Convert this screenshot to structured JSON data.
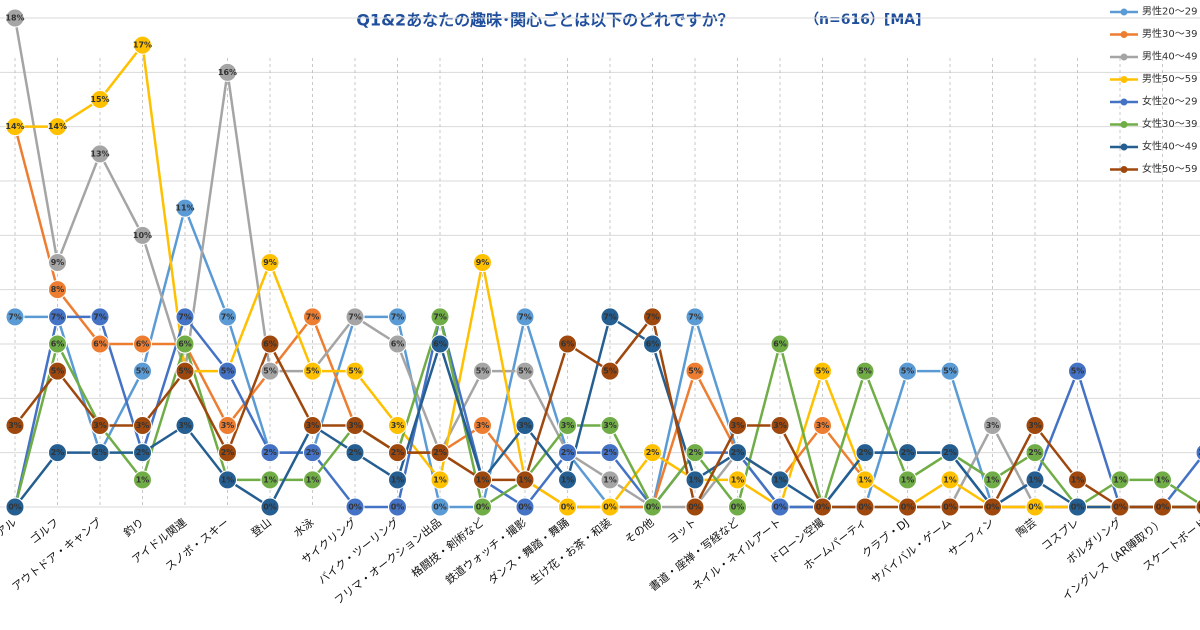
{
  "chart_data": {
    "type": "line",
    "title": "Q1&2あなたの趣味･関心ごとは以下のどれですか？",
    "subtitle": "（n=616）[MA]",
    "categories": [
      "アル",
      "ゴルフ",
      "アウトドア・キャンプ",
      "釣り",
      "アイドル関連",
      "スノボ・スキー",
      "登山",
      "水泳",
      "サイクリング",
      "バイク・ツーリング",
      "フリマ・オークション出品",
      "格闘技・剣術など",
      "鉄道ウォッチ・撮影",
      "ダンス・舞踏・舞踊",
      "生け花・お茶・和装",
      "その他",
      "ヨット",
      "書道・座禅・写経など",
      "ネイル・ネイルアート",
      "ドローン空撮",
      "ホームパーティ",
      "クラブ・DJ",
      "サバイバル・ゲーム",
      "サーフィン",
      "陶芸",
      "コスプレ",
      "ボルダリング",
      "イングレス（AR陣取り）",
      "スケートボード"
    ],
    "ylim": [
      0,
      18
    ],
    "yticks": [
      0,
      2,
      4,
      6,
      8,
      10,
      12,
      14,
      16,
      18
    ],
    "grid": true,
    "series": [
      {
        "name": "男性20～29",
        "color": "#5b9bd5",
        "values": [
          7,
          7,
          2,
          5,
          11,
          7,
          2,
          2,
          7,
          7,
          0,
          0,
          7,
          2,
          0,
          0,
          7,
          2,
          0,
          0,
          0,
          5,
          5,
          0,
          0,
          0,
          0,
          0,
          0
        ],
        "value_labels": [
          "7%",
          "7%",
          "2%",
          "5%",
          "11%",
          "7%",
          "2%",
          "2%",
          "7%",
          "7%",
          "0%",
          "0%",
          "7%",
          "2%",
          "0%",
          "0%",
          "7%",
          "2%",
          "0%",
          "0%",
          "0%",
          "5%",
          "5%",
          "0%",
          "0%",
          "0%",
          "0%",
          "0%",
          "0%"
        ]
      },
      {
        "name": "男性30～39",
        "color": "#ed7d31",
        "values": [
          14,
          8,
          6,
          6,
          6,
          3,
          5,
          7,
          3,
          2,
          2,
          3,
          1,
          0,
          0,
          0,
          5,
          2,
          1,
          3,
          1,
          0,
          0,
          0,
          0,
          0,
          0,
          0,
          0
        ],
        "value_labels": [
          "14%",
          "8%",
          "6%",
          "6%",
          "6%",
          "3%",
          "5%",
          "7%",
          "3%",
          "2%",
          "2%",
          "3%",
          "1%",
          "0%",
          "0%",
          "0%",
          "5%",
          "2%",
          "1%",
          "3%",
          "1%",
          "0%",
          "0%",
          "0%",
          "0%",
          "0%",
          "0%",
          "0%",
          "0%"
        ]
      },
      {
        "name": "男性40～49",
        "color": "#a5a5a5",
        "values": [
          18,
          9,
          13,
          10,
          5,
          16,
          5,
          5,
          7,
          6,
          2,
          5,
          5,
          2,
          1,
          0,
          0,
          2,
          0,
          0,
          0,
          0,
          0,
          3,
          0,
          0,
          0,
          0,
          0
        ],
        "value_labels": [
          "18%",
          "9%",
          "13%",
          "10%",
          "5%",
          "16%",
          "5%",
          "5%",
          "7%",
          "6%",
          "2%",
          "5%",
          "5%",
          "2%",
          "1%",
          "0%",
          "0%",
          "2%",
          "0%",
          "0%",
          "0%",
          "0%",
          "0%",
          "3%",
          "0%",
          "0%",
          "0%",
          "0%",
          "0%"
        ]
      },
      {
        "name": "男性50～59",
        "color": "#ffc000",
        "values": [
          14,
          14,
          15,
          17,
          5,
          5,
          9,
          5,
          5,
          3,
          1,
          9,
          1,
          0,
          0,
          2,
          1,
          1,
          0,
          5,
          1,
          0,
          1,
          0,
          0,
          0,
          0,
          0,
          0
        ],
        "value_labels": [
          "14%",
          "14%",
          "15%",
          "17%",
          "5%",
          "5%",
          "9%",
          "5%",
          "5%",
          "3%",
          "1%",
          "9%",
          "1%",
          "0%",
          "0%",
          "2%",
          "1%",
          "1%",
          "0%",
          "5%",
          "1%",
          "0%",
          "1%",
          "0%",
          "0%",
          "0%",
          "0%",
          "0%",
          "0%"
        ]
      },
      {
        "name": "女性20～29",
        "color": "#4472c4",
        "values": [
          0,
          7,
          7,
          2,
          7,
          5,
          2,
          2,
          0,
          0,
          7,
          1,
          0,
          2,
          2,
          0,
          2,
          2,
          0,
          0,
          2,
          2,
          2,
          0,
          1,
          5,
          0,
          0,
          2
        ],
        "value_labels": [
          "0%",
          "7%",
          "7%",
          "2%",
          "7%",
          "5%",
          "2%",
          "2%",
          "0%",
          "0%",
          "7%",
          "1%",
          "0%",
          "2%",
          "2%",
          "0%",
          "2%",
          "2%",
          "0%",
          "0%",
          "2%",
          "2%",
          "2%",
          "0%",
          "1%",
          "5%",
          "0%",
          "0%",
          "2%"
        ]
      },
      {
        "name": "女性30～39",
        "color": "#70ad47",
        "values": [
          0,
          6,
          3,
          1,
          6,
          1,
          1,
          1,
          3,
          2,
          7,
          0,
          1,
          3,
          3,
          0,
          2,
          0,
          6,
          0,
          5,
          1,
          2,
          1,
          2,
          0,
          1,
          1,
          0
        ],
        "value_labels": [
          "0%",
          "6%",
          "3%",
          "1%",
          "6%",
          "1%",
          "1%",
          "1%",
          "3%",
          "2%",
          "7%",
          "0%",
          "1%",
          "3%",
          "3%",
          "0%",
          "2%",
          "0%",
          "6%",
          "0%",
          "5%",
          "1%",
          "2%",
          "1%",
          "2%",
          "0%",
          "1%",
          "1%",
          "0%"
        ]
      },
      {
        "name": "女性40～49",
        "color": "#255e91",
        "values": [
          0,
          2,
          2,
          2,
          3,
          1,
          0,
          3,
          2,
          1,
          6,
          1,
          3,
          1,
          7,
          6,
          1,
          2,
          1,
          0,
          2,
          2,
          2,
          0,
          1,
          0,
          0,
          0,
          0
        ],
        "value_labels": [
          "0%",
          "2%",
          "2%",
          "2%",
          "3%",
          "1%",
          "0%",
          "3%",
          "2%",
          "1%",
          "6%",
          "1%",
          "3%",
          "1%",
          "7%",
          "6%",
          "1%",
          "2%",
          "1%",
          "0%",
          "2%",
          "2%",
          "2%",
          "0%",
          "1%",
          "0%",
          "0%",
          "0%",
          "0%"
        ]
      },
      {
        "name": "女性50～59",
        "color": "#9e480e",
        "values": [
          3,
          5,
          3,
          3,
          5,
          2,
          6,
          3,
          3,
          2,
          2,
          1,
          1,
          6,
          5,
          7,
          0,
          3,
          3,
          0,
          0,
          0,
          0,
          0,
          3,
          1,
          0,
          0,
          0
        ],
        "value_labels": [
          "3%",
          "5%",
          "3%",
          "3%",
          "5%",
          "2%",
          "6%",
          "3%",
          "3%",
          "2%",
          "2%",
          "1%",
          "1%",
          "6%",
          "5%",
          "7%",
          "0%",
          "3%",
          "3%",
          "0%",
          "0%",
          "0%",
          "0%",
          "0%",
          "3%",
          "1%",
          "0%",
          "0%",
          "0%"
        ]
      }
    ]
  }
}
